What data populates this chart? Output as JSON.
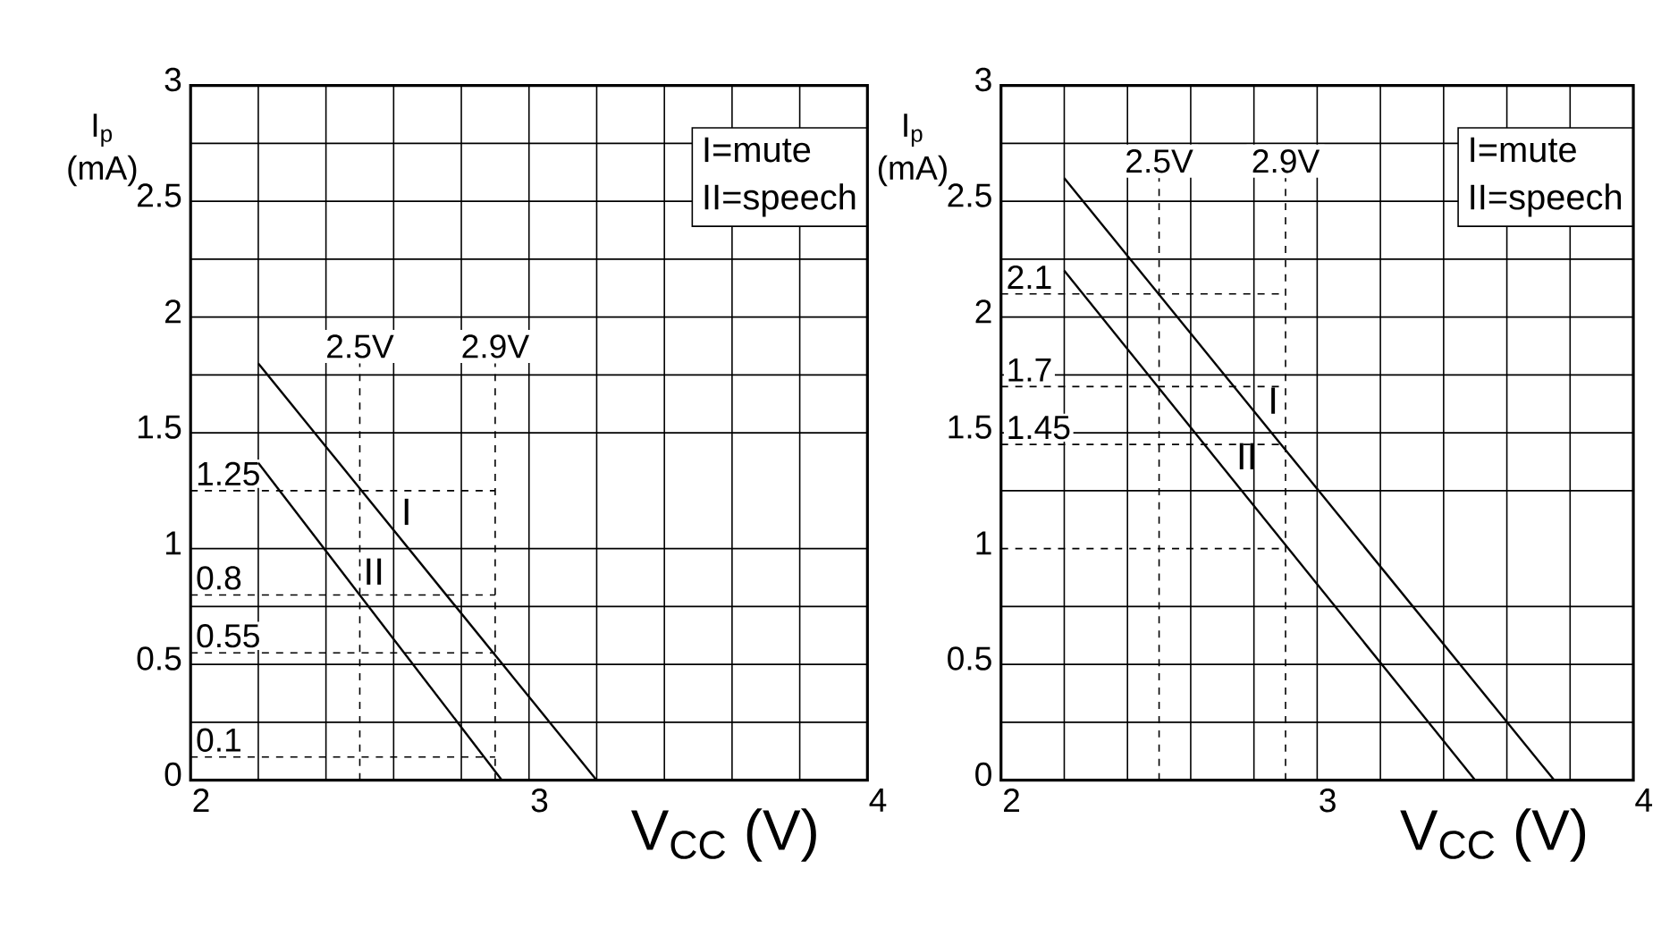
{
  "chart_data": [
    {
      "type": "line",
      "xlabel": "V$_{CC}$ (V)",
      "ylabel": "I$_{p}$ (mA)",
      "xlim": [
        2,
        4
      ],
      "ylim": [
        0,
        3
      ],
      "xticks": [
        2,
        3,
        4
      ],
      "yticks": [
        0,
        0.5,
        1,
        1.5,
        2,
        2.5,
        3
      ],
      "grid": true,
      "series": [
        {
          "name": "I",
          "color": "#000000",
          "x": [
            2.2,
            3.2
          ],
          "values": [
            1.8,
            0
          ]
        },
        {
          "name": "II",
          "color": "#000000",
          "x": [
            2.2,
            2.92
          ],
          "values": [
            1.37,
            0
          ]
        }
      ],
      "ref_lines": [
        {
          "axis": "x",
          "value": 2.5,
          "label": "2.5V",
          "line_style": "dashed"
        },
        {
          "axis": "x",
          "value": 2.9,
          "label": "2.9V",
          "line_style": "dashed"
        },
        {
          "axis": "y",
          "value": 1.25,
          "label": "1.25",
          "line_style": "dashed"
        },
        {
          "axis": "y",
          "value": 0.8,
          "label": "0.8",
          "line_style": "dashed"
        },
        {
          "axis": "y",
          "value": 0.55,
          "label": "0.55",
          "line_style": "dashed"
        },
        {
          "axis": "y",
          "value": 0.1,
          "label": "0.1",
          "line_style": "dashed"
        }
      ],
      "annotations": [
        "I=mute",
        "II=speech"
      ]
    },
    {
      "type": "line",
      "xlabel": "V$_{CC}$ (V)",
      "ylabel": "I$_{p}$ (mA)",
      "xlim": [
        2,
        4
      ],
      "ylim": [
        0,
        3
      ],
      "xticks": [
        2,
        3,
        4
      ],
      "yticks": [
        0,
        0.5,
        1,
        1.5,
        2,
        2.5,
        3
      ],
      "grid": true,
      "series": [
        {
          "name": "I",
          "color": "#000000",
          "x": [
            2.2,
            3.75
          ],
          "values": [
            2.6,
            0
          ]
        },
        {
          "name": "II",
          "color": "#000000",
          "x": [
            2.2,
            3.5
          ],
          "values": [
            2.2,
            0
          ]
        }
      ],
      "ref_lines": [
        {
          "axis": "x",
          "value": 2.5,
          "label": "2.5V",
          "line_style": "dashed"
        },
        {
          "axis": "x",
          "value": 2.9,
          "label": "2.9V",
          "line_style": "dashed"
        },
        {
          "axis": "y",
          "value": 2.1,
          "label": "2.1",
          "line_style": "dashed"
        },
        {
          "axis": "y",
          "value": 1.7,
          "label": "1.7",
          "line_style": "dashed"
        },
        {
          "axis": "y",
          "value": 1.45,
          "label": "1.45",
          "line_style": "dashed"
        },
        {
          "axis": "y",
          "value": 1,
          "label": null,
          "line_style": "dashed"
        }
      ],
      "annotations": [
        "I=mute",
        "II=speech"
      ]
    }
  ]
}
